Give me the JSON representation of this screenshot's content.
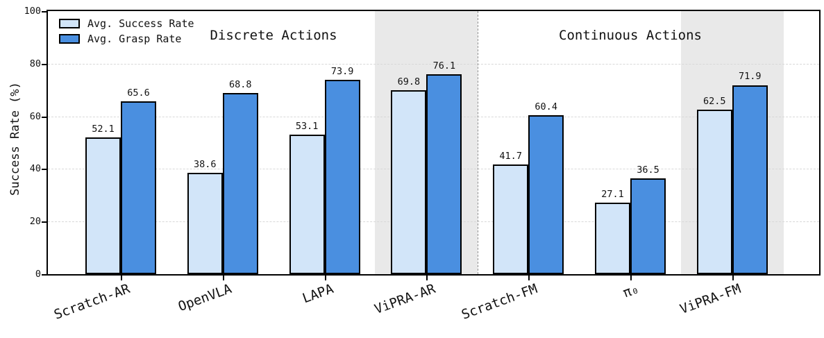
{
  "chart_data": {
    "type": "bar",
    "title": "",
    "ylabel": "Success Rate (%)",
    "ylim": [
      0,
      100
    ],
    "yticks": [
      0,
      20,
      40,
      60,
      80,
      100
    ],
    "grid": "horizontal-dashed",
    "legend_position": "upper left",
    "categories": [
      "Scratch-AR",
      "OpenVLA",
      "LAPA",
      "ViPRA-AR",
      "Scratch-FM",
      "π₀",
      "ViPRA-FM"
    ],
    "series": [
      {
        "name": "Avg. Success Rate",
        "color": "#d2e5f9",
        "values": [
          52.1,
          38.6,
          53.1,
          69.8,
          41.7,
          27.1,
          62.5
        ]
      },
      {
        "name": "Avg. Grasp Rate",
        "color": "#4a8fe0",
        "values": [
          65.6,
          68.8,
          73.9,
          76.1,
          60.4,
          36.5,
          71.9
        ]
      }
    ],
    "sections": [
      {
        "label": "Discrete Actions",
        "categories": [
          "Scratch-AR",
          "OpenVLA",
          "LAPA",
          "ViPRA-AR"
        ]
      },
      {
        "label": "Continuous Actions",
        "categories": [
          "Scratch-FM",
          "π₀",
          "ViPRA-FM"
        ]
      }
    ],
    "highlighted_categories": [
      "ViPRA-AR",
      "ViPRA-FM"
    ],
    "separator_after_category": "ViPRA-AR",
    "colors": {
      "bar_edge": "#000000",
      "highlight_band": "#e9e9e9",
      "gridline": "#d8d8d8",
      "separator": "#8f8f8f"
    }
  }
}
